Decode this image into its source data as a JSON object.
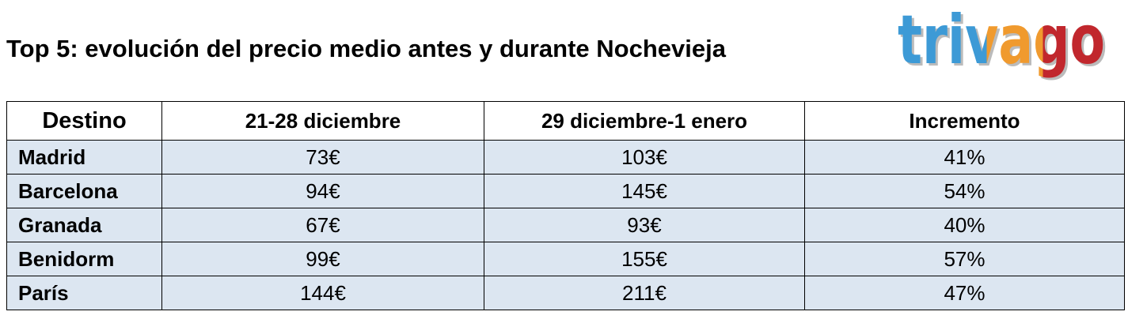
{
  "header": {
    "title": "Top 5: evolución del precio medio antes y durante Nochevieja",
    "logo": "trivago"
  },
  "table": {
    "columns": [
      "Destino",
      "21-28 diciembre",
      "29 diciembre-1 enero",
      "Incremento"
    ],
    "rows": [
      [
        "Madrid",
        "73€",
        "103€",
        "41%"
      ],
      [
        "Barcelona",
        "94€",
        "145€",
        "54%"
      ],
      [
        "Granada",
        "67€",
        "93€",
        "40%"
      ],
      [
        "Benidorm",
        "99€",
        "155€",
        "57%"
      ],
      [
        "París",
        "144€",
        "211€",
        "47%"
      ]
    ]
  }
}
